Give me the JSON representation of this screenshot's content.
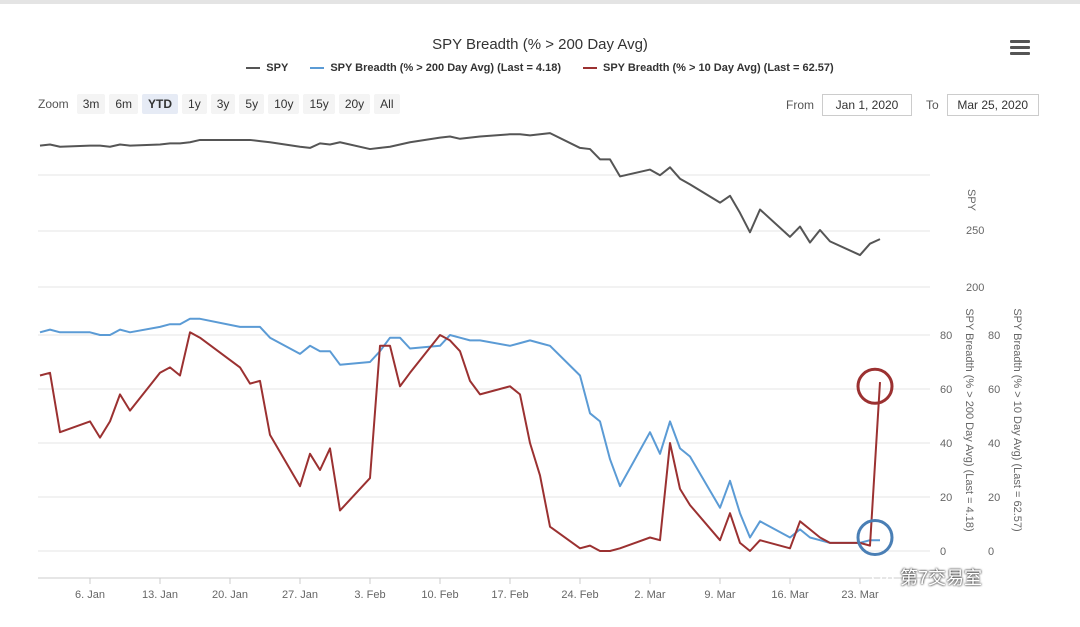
{
  "title": "SPY Breadth (% > 200 Day Avg)",
  "legend": [
    {
      "label": "SPY",
      "color": "#555555"
    },
    {
      "label": "SPY Breadth (% > 200 Day Avg) (Last = 4.18)",
      "color": "#5b9bd5"
    },
    {
      "label": "SPY Breadth (% > 10 Day Avg) (Last = 62.57)",
      "color": "#9b3131"
    }
  ],
  "zoom": {
    "label": "Zoom",
    "buttons": [
      "3m",
      "6m",
      "YTD",
      "1y",
      "3y",
      "5y",
      "10y",
      "15y",
      "20y",
      "All"
    ],
    "active": "YTD"
  },
  "range": {
    "from_label": "From",
    "from_value": "Jan 1, 2020",
    "to_label": "To",
    "to_value": "Mar 25, 2020"
  },
  "watermark": "第7交易室",
  "chart_data": {
    "type": "line",
    "x_ticks": [
      "6. Jan",
      "13. Jan",
      "20. Jan",
      "27. Jan",
      "3. Feb",
      "10. Feb",
      "17. Feb",
      "24. Feb",
      "2. Mar",
      "9. Mar",
      "16. Mar",
      "23. Mar"
    ],
    "x_range": [
      1,
      86
    ],
    "panes": [
      {
        "name": "SPY",
        "axis_label": "SPY",
        "y_ticks": [
          200,
          250
        ],
        "ylim": [
          200,
          340
        ],
        "series": [
          {
            "name": "SPY",
            "color": "#555555",
            "x": [
              1,
              2,
              3,
              6,
              7,
              8,
              9,
              10,
              13,
              14,
              15,
              16,
              17,
              21,
              22,
              23,
              24,
              27,
              28,
              29,
              30,
              31,
              34,
              35,
              36,
              37,
              38,
              41,
              42,
              43,
              44,
              45,
              48,
              49,
              50,
              51,
              52,
              55,
              56,
              57,
              58,
              59,
              62,
              63,
              64,
              65,
              66,
              69,
              70,
              71,
              72,
              73,
              76,
              77,
              78,
              79,
              80,
              83,
              84,
              85
            ],
            "y": [
              324,
              325,
              323,
              324,
              324,
              323,
              325,
              324,
              325,
              326,
              326,
              327,
              329,
              329,
              329,
              328,
              327,
              323,
              322,
              326,
              325,
              327,
              321,
              322,
              323,
              325,
              327,
              331,
              332,
              330,
              331,
              332,
              334,
              334,
              333,
              334,
              335,
              322,
              321,
              312,
              312,
              297,
              303,
              298,
              305,
              295,
              290,
              274,
              280,
              265,
              248,
              268,
              244,
              253,
              239,
              250,
              240,
              228,
              238,
              242
            ]
          }
        ]
      },
      {
        "name": "Breadth",
        "left_axis_label": "SPY Breadth (% > 200 Day Avg) (Last = 4.18)",
        "right_axis_label": "SPY Breadth (% > 10 Day Avg) (Last = 62.57)",
        "y_ticks": [
          0,
          20,
          40,
          60,
          80
        ],
        "ylim": [
          -10,
          90
        ],
        "series": [
          {
            "name": "SPY Breadth (% > 200 Day Avg)",
            "color": "#5b9bd5",
            "x": [
              1,
              2,
              3,
              6,
              7,
              8,
              9,
              10,
              13,
              14,
              15,
              16,
              17,
              21,
              22,
              23,
              24,
              27,
              28,
              29,
              30,
              31,
              34,
              35,
              36,
              37,
              38,
              41,
              42,
              43,
              44,
              45,
              48,
              49,
              50,
              51,
              52,
              55,
              56,
              57,
              58,
              59,
              62,
              63,
              64,
              65,
              66,
              69,
              70,
              71,
              72,
              73,
              76,
              77,
              78,
              79,
              80,
              83,
              84,
              85
            ],
            "y": [
              81,
              82,
              81,
              81,
              80,
              80,
              82,
              81,
              83,
              84,
              84,
              86,
              86,
              83,
              83,
              83,
              79,
              73,
              76,
              74,
              74,
              69,
              70,
              74,
              79,
              79,
              75,
              76,
              80,
              79,
              78,
              78,
              76,
              77,
              78,
              77,
              76,
              65,
              51,
              48,
              34,
              24,
              44,
              36,
              48,
              38,
              35,
              16,
              26,
              14,
              5,
              11,
              5,
              8,
              5,
              4,
              3,
              3,
              4,
              4
            ]
          },
          {
            "name": "SPY Breadth (% > 10 Day Avg)",
            "color": "#9b3131",
            "x": [
              1,
              2,
              3,
              6,
              7,
              8,
              9,
              10,
              13,
              14,
              15,
              16,
              17,
              21,
              22,
              23,
              24,
              27,
              28,
              29,
              30,
              31,
              34,
              35,
              36,
              37,
              38,
              41,
              42,
              43,
              44,
              45,
              48,
              49,
              50,
              51,
              52,
              55,
              56,
              57,
              58,
              59,
              62,
              63,
              64,
              65,
              66,
              69,
              70,
              71,
              72,
              73,
              76,
              77,
              78,
              79,
              80,
              83,
              84,
              85
            ],
            "y": [
              65,
              66,
              44,
              48,
              42,
              48,
              58,
              52,
              66,
              68,
              65,
              81,
              79,
              68,
              62,
              63,
              43,
              24,
              36,
              30,
              38,
              15,
              27,
              76,
              76,
              61,
              66,
              80,
              78,
              74,
              63,
              58,
              61,
              58,
              40,
              28,
              9,
              1,
              2,
              0,
              0,
              1,
              5,
              4,
              40,
              23,
              17,
              4,
              14,
              3,
              0,
              4,
              1,
              11,
              8,
              5,
              3,
              3,
              2,
              62.57
            ]
          }
        ]
      }
    ],
    "highlights": [
      {
        "series": "SPY Breadth (% > 10 Day Avg)",
        "x": 84.5,
        "y": 61,
        "color": "#9b3131"
      },
      {
        "series": "SPY Breadth (% > 200 Day Avg)",
        "x": 84.5,
        "y": 5,
        "color": "#4a7fb5"
      }
    ]
  }
}
